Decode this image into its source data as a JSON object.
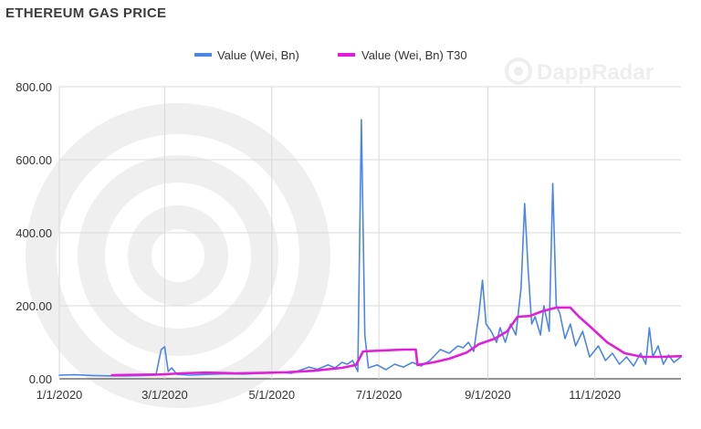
{
  "page": {
    "title": "ETHEREUM GAS PRICE"
  },
  "watermark": {
    "text": "DappRadar",
    "icon": "dappradar-logo"
  },
  "colors": {
    "series_value": "#4a86e8",
    "series_t30": "#e020d8",
    "grid": "#d9d9d9",
    "watermark": "#eeeeee"
  },
  "chart_data": {
    "type": "line",
    "y_tick_labels": [
      "0.00",
      "200.00",
      "400.00",
      "600.00",
      "800.00"
    ],
    "x_tick_labels": [
      "1/1/2020",
      "3/1/2020",
      "5/1/2020",
      "7/1/2020",
      "9/1/2020",
      "11/1/2020"
    ],
    "ylim": [
      0,
      800
    ],
    "xlim": [
      "2020-01-01",
      "2020-12-20"
    ],
    "grid": true,
    "legend_position": "top",
    "series": [
      {
        "name": "Value (Wei, Bn)",
        "color": "#4a86e8",
        "points": [
          [
            "2020-01-01",
            10
          ],
          [
            "2020-01-10",
            11
          ],
          [
            "2020-01-20",
            9
          ],
          [
            "2020-01-30",
            8
          ],
          [
            "2020-02-08",
            8
          ],
          [
            "2020-02-18",
            9
          ],
          [
            "2020-02-25",
            10
          ],
          [
            "2020-02-28",
            80
          ],
          [
            "2020-03-01",
            88
          ],
          [
            "2020-03-03",
            20
          ],
          [
            "2020-03-05",
            30
          ],
          [
            "2020-03-08",
            12
          ],
          [
            "2020-03-15",
            10
          ],
          [
            "2020-03-25",
            12
          ],
          [
            "2020-04-05",
            14
          ],
          [
            "2020-04-15",
            13
          ],
          [
            "2020-04-25",
            15
          ],
          [
            "2020-05-05",
            18
          ],
          [
            "2020-05-12",
            15
          ],
          [
            "2020-05-18",
            25
          ],
          [
            "2020-05-22",
            32
          ],
          [
            "2020-05-27",
            26
          ],
          [
            "2020-06-02",
            38
          ],
          [
            "2020-06-06",
            30
          ],
          [
            "2020-06-10",
            45
          ],
          [
            "2020-06-13",
            40
          ],
          [
            "2020-06-16",
            50
          ],
          [
            "2020-06-19",
            20
          ],
          [
            "2020-06-21",
            710
          ],
          [
            "2020-06-23",
            120
          ],
          [
            "2020-06-25",
            30
          ],
          [
            "2020-06-30",
            38
          ],
          [
            "2020-07-05",
            25
          ],
          [
            "2020-07-10",
            40
          ],
          [
            "2020-07-15",
            32
          ],
          [
            "2020-07-20",
            45
          ],
          [
            "2020-07-25",
            35
          ],
          [
            "2020-07-30",
            50
          ],
          [
            "2020-08-05",
            80
          ],
          [
            "2020-08-10",
            70
          ],
          [
            "2020-08-15",
            90
          ],
          [
            "2020-08-18",
            85
          ],
          [
            "2020-08-21",
            100
          ],
          [
            "2020-08-24",
            75
          ],
          [
            "2020-08-27",
            180
          ],
          [
            "2020-08-29",
            270
          ],
          [
            "2020-08-31",
            150
          ],
          [
            "2020-09-03",
            130
          ],
          [
            "2020-09-06",
            100
          ],
          [
            "2020-09-08",
            140
          ],
          [
            "2020-09-11",
            100
          ],
          [
            "2020-09-14",
            150
          ],
          [
            "2020-09-17",
            120
          ],
          [
            "2020-09-20",
            250
          ],
          [
            "2020-09-22",
            480
          ],
          [
            "2020-09-24",
            300
          ],
          [
            "2020-09-26",
            150
          ],
          [
            "2020-09-28",
            170
          ],
          [
            "2020-10-01",
            120
          ],
          [
            "2020-10-03",
            200
          ],
          [
            "2020-10-06",
            130
          ],
          [
            "2020-10-08",
            535
          ],
          [
            "2020-10-10",
            200
          ],
          [
            "2020-10-12",
            180
          ],
          [
            "2020-10-15",
            110
          ],
          [
            "2020-10-18",
            150
          ],
          [
            "2020-10-21",
            90
          ],
          [
            "2020-10-25",
            130
          ],
          [
            "2020-10-29",
            60
          ],
          [
            "2020-11-03",
            90
          ],
          [
            "2020-11-07",
            50
          ],
          [
            "2020-11-11",
            70
          ],
          [
            "2020-11-15",
            40
          ],
          [
            "2020-11-19",
            60
          ],
          [
            "2020-11-23",
            35
          ],
          [
            "2020-11-27",
            70
          ],
          [
            "2020-11-30",
            40
          ],
          [
            "2020-12-02",
            140
          ],
          [
            "2020-12-04",
            60
          ],
          [
            "2020-12-07",
            90
          ],
          [
            "2020-12-10",
            40
          ],
          [
            "2020-12-13",
            65
          ],
          [
            "2020-12-16",
            45
          ],
          [
            "2020-12-20",
            60
          ]
        ]
      },
      {
        "name": "Value (Wei, Bn) T30",
        "color": "#e020d8",
        "points": [
          [
            "2020-01-31",
            10
          ],
          [
            "2020-02-15",
            11
          ],
          [
            "2020-02-29",
            12
          ],
          [
            "2020-03-10",
            15
          ],
          [
            "2020-03-25",
            17
          ],
          [
            "2020-04-10",
            15
          ],
          [
            "2020-04-25",
            16
          ],
          [
            "2020-05-10",
            18
          ],
          [
            "2020-05-25",
            22
          ],
          [
            "2020-06-10",
            30
          ],
          [
            "2020-06-18",
            38
          ],
          [
            "2020-06-22",
            75
          ],
          [
            "2020-07-05",
            78
          ],
          [
            "2020-07-15",
            80
          ],
          [
            "2020-07-22",
            80
          ],
          [
            "2020-07-23",
            38
          ],
          [
            "2020-08-01",
            45
          ],
          [
            "2020-08-10",
            55
          ],
          [
            "2020-08-20",
            72
          ],
          [
            "2020-08-27",
            95
          ],
          [
            "2020-09-05",
            110
          ],
          [
            "2020-09-12",
            130
          ],
          [
            "2020-09-18",
            170
          ],
          [
            "2020-09-25",
            172
          ],
          [
            "2020-10-02",
            185
          ],
          [
            "2020-10-10",
            195
          ],
          [
            "2020-10-18",
            195
          ],
          [
            "2020-10-23",
            170
          ],
          [
            "2020-10-30",
            140
          ],
          [
            "2020-11-08",
            100
          ],
          [
            "2020-11-18",
            70
          ],
          [
            "2020-11-28",
            60
          ],
          [
            "2020-12-08",
            60
          ],
          [
            "2020-12-20",
            62
          ]
        ]
      }
    ]
  }
}
